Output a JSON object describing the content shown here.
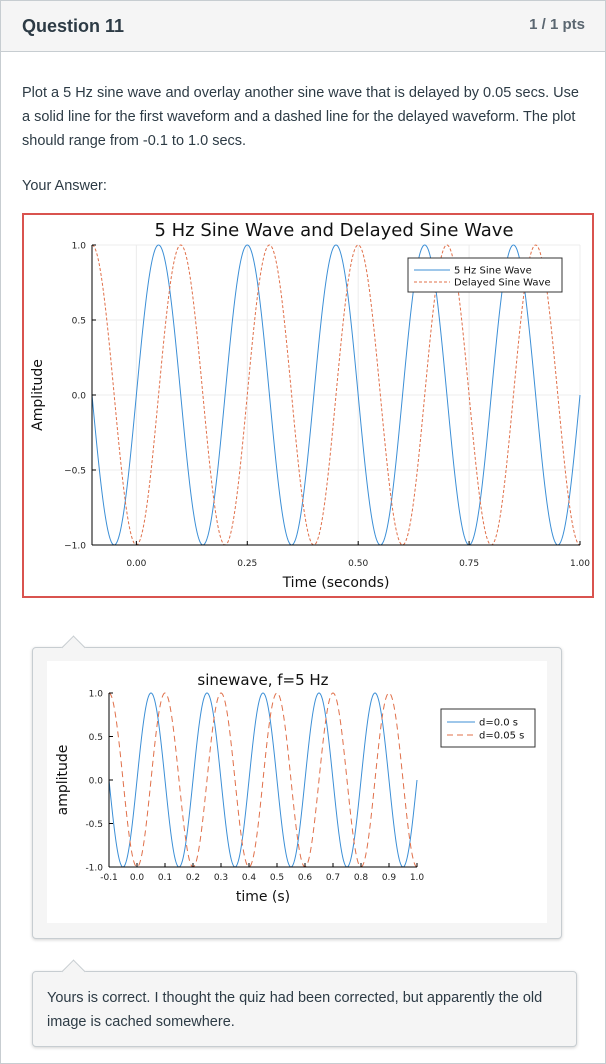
{
  "question": {
    "title": "Question 11",
    "points": "1 / 1 pts",
    "text": "Plot a 5 Hz sine wave and overlay another sine wave that is delayed by 0.05 secs.  Use a solid line for the first waveform and a dashed line for the delayed waveform.  The plot should range from -0.1 to 1.0 secs.",
    "your_answer_label": "Your Answer:"
  },
  "comments": {
    "reply_text": "Yours is correct. I thought the quiz had been corrected, but apparently the old image is cached somewhere."
  },
  "colors": {
    "answer_border": "#d9534f",
    "series_solid": "#3c8fd6",
    "series_dashed": "#e0704a"
  },
  "chart_data": [
    {
      "type": "line",
      "title": "5 Hz Sine Wave and Delayed Sine Wave",
      "xlabel": "Time (seconds)",
      "ylabel": "Amplitude",
      "xlim": [
        -0.1,
        1.0
      ],
      "ylim": [
        -1.0,
        1.0
      ],
      "xticks": [
        0.0,
        0.25,
        0.5,
        0.75,
        1.0
      ],
      "xtick_labels": [
        "0.00",
        "0.25",
        "0.50",
        "0.75",
        "1.00"
      ],
      "yticks": [
        -1.0,
        -0.5,
        0.0,
        0.5,
        1.0
      ],
      "ytick_labels": [
        "−1.0",
        "−0.5",
        "0.0",
        "0.5",
        "1.0"
      ],
      "grid": true,
      "legend_position": "top-right",
      "series": [
        {
          "name": "5 Hz Sine Wave",
          "frequency_hz": 5,
          "delay_s": 0.0,
          "style": "solid"
        },
        {
          "name": "Delayed Sine Wave",
          "frequency_hz": 5,
          "delay_s": 0.05,
          "style": "dashed"
        }
      ]
    },
    {
      "type": "line",
      "title": "sinewave, f=5 Hz",
      "xlabel": "time (s)",
      "ylabel": "amplitude",
      "xlim": [
        -0.1,
        1.0
      ],
      "ylim": [
        -1.0,
        1.0
      ],
      "xticks": [
        -0.1,
        0.0,
        0.1,
        0.2,
        0.3,
        0.4,
        0.5,
        0.6,
        0.7,
        0.8,
        0.9,
        1.0
      ],
      "xtick_labels": [
        "-0.1",
        "0.0",
        "0.1",
        "0.2",
        "0.3",
        "0.4",
        "0.5",
        "0.6",
        "0.7",
        "0.8",
        "0.9",
        "1.0"
      ],
      "yticks": [
        -1.0,
        -0.5,
        0.0,
        0.5,
        1.0
      ],
      "ytick_labels": [
        "-1.0",
        "-0.5",
        "0.0",
        "0.5",
        "1.0"
      ],
      "grid": false,
      "legend_position": "right-outside",
      "series": [
        {
          "name": "d=0.0 s",
          "frequency_hz": 5,
          "delay_s": 0.0,
          "style": "solid"
        },
        {
          "name": "d=0.05 s",
          "frequency_hz": 5,
          "delay_s": 0.05,
          "style": "dashed"
        }
      ]
    }
  ]
}
